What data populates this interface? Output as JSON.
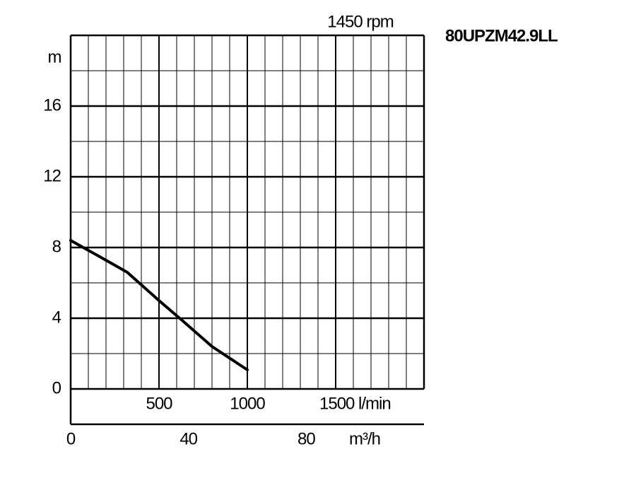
{
  "chart_data": {
    "type": "line",
    "title": "80UPZM42.9LL",
    "subtitle": "1450 rpm",
    "ylabel": "m",
    "x2label": "m³/h",
    "x": [
      0,
      200,
      320,
      500,
      640,
      800,
      1000
    ],
    "series": [
      {
        "name": "1450 rpm",
        "color": "#000000",
        "values": [
          8.4,
          7.28,
          6.6,
          5.0,
          3.8,
          2.4,
          1.08
        ]
      }
    ],
    "xlim": [
      0,
      2000
    ],
    "xticks": [
      500,
      1000,
      {
        "value": 1500,
        "label": "1500 l/min"
      }
    ],
    "x2lim": [
      0,
      120
    ],
    "x2ticks": [
      0,
      40,
      80
    ],
    "ylim": [
      0,
      20
    ],
    "yticks": [
      0,
      4,
      8,
      12,
      16
    ],
    "xgrid_step": 100,
    "ygrid_step": 2,
    "grid": true
  }
}
